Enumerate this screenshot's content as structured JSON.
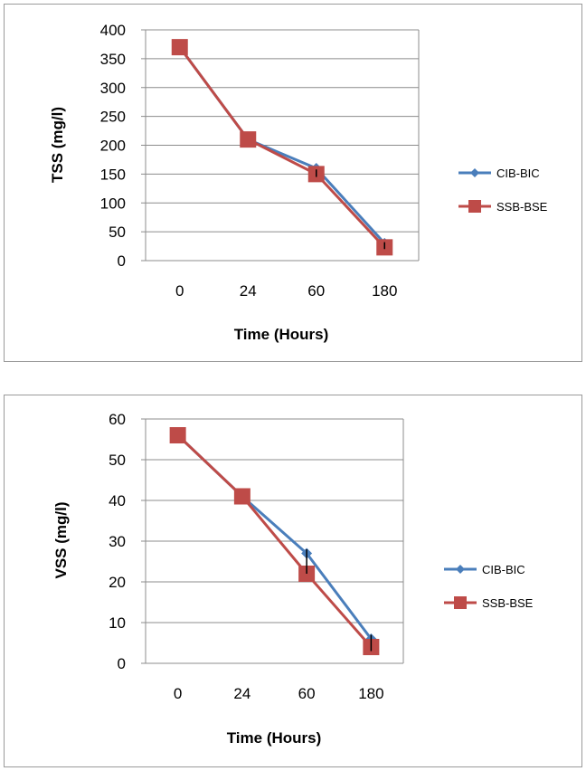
{
  "colors": {
    "series_1": "#4a7ebb",
    "series_2": "#be4b48",
    "grid": "#8c8c8c",
    "error_bar": "#000000"
  },
  "chart_data": [
    {
      "type": "line",
      "categories": [
        "0",
        "24",
        "60",
        "180"
      ],
      "xlabel": "Time (Hours)",
      "ylabel": "TSS (mg/l)",
      "ylim": [
        0,
        400
      ],
      "yticks": [
        0,
        50,
        100,
        150,
        200,
        250,
        300,
        350,
        400
      ],
      "grid": true,
      "legend": "right",
      "series": [
        {
          "name": "CIB-BIC",
          "marker": "diamond",
          "values": [
            370,
            210,
            160,
            30
          ]
        },
        {
          "name": "SSB-BSE",
          "marker": "square",
          "values": [
            370,
            210,
            150,
            23
          ]
        }
      ],
      "error_bars": [
        {
          "category": "60",
          "low": 145,
          "high": 158
        },
        {
          "category": "180",
          "low": 20,
          "high": 32
        }
      ]
    },
    {
      "type": "line",
      "categories": [
        "0",
        "24",
        "60",
        "180"
      ],
      "xlabel": "Time (Hours)",
      "ylabel": "VSS (mg/l)",
      "ylim": [
        0,
        60
      ],
      "yticks": [
        0,
        10,
        20,
        30,
        40,
        50,
        60
      ],
      "grid": true,
      "legend": "right",
      "series": [
        {
          "name": "CIB-BIC",
          "marker": "diamond",
          "values": [
            56,
            41,
            27,
            6
          ]
        },
        {
          "name": "SSB-BSE",
          "marker": "square",
          "values": [
            56,
            41,
            22,
            4
          ]
        }
      ],
      "error_bars": [
        {
          "category": "60",
          "low": 22,
          "high": 28
        },
        {
          "category": "180",
          "low": 3,
          "high": 7
        }
      ]
    }
  ]
}
